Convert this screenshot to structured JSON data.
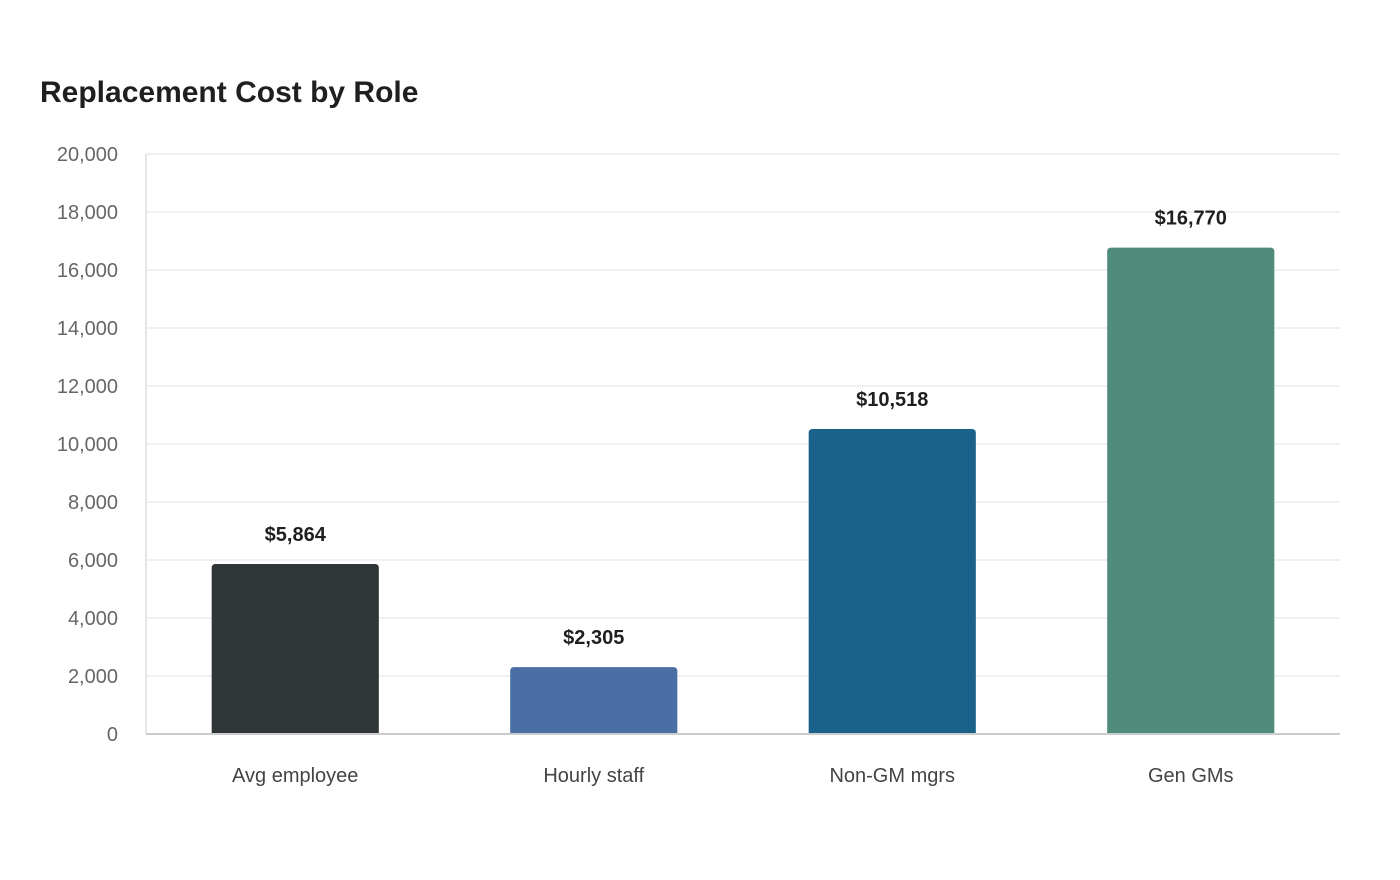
{
  "chart_data": {
    "type": "bar",
    "title": "Replacement Cost by Role",
    "xlabel": "",
    "ylabel": "",
    "categories": [
      "Avg employee",
      "Hourly staff",
      "Non-GM mgrs",
      "Gen GMs"
    ],
    "values": [
      5864,
      2305,
      10518,
      16770
    ],
    "data_labels": [
      "$5,864",
      "$2,305",
      "$10,518",
      "$16,770"
    ],
    "colors": [
      "#2e3638",
      "#4a6fa5",
      "#1a6289",
      "#4f8c7b"
    ],
    "ylim": [
      0,
      20000
    ],
    "yticks": [
      0,
      2000,
      4000,
      6000,
      8000,
      10000,
      12000,
      14000,
      16000,
      18000,
      20000
    ],
    "ytick_labels": [
      "0",
      "2,000",
      "4,000",
      "6,000",
      "8,000",
      "10,000",
      "12,000",
      "14,000",
      "16,000",
      "18,000",
      "20,000"
    ],
    "grid": true,
    "legend": "none"
  }
}
